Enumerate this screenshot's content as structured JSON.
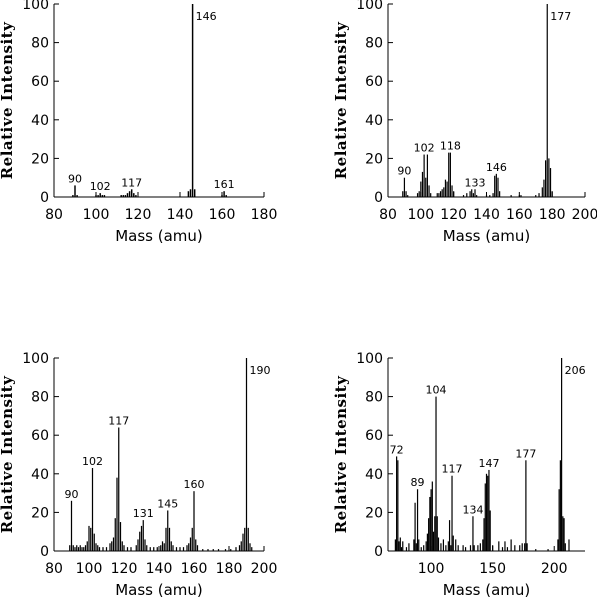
{
  "chart_data": [
    {
      "type": "bar",
      "xlabel": "Mass (amu)",
      "ylabel": "Relative Intensity",
      "xlim": [
        80,
        180
      ],
      "ylim": [
        0,
        100
      ],
      "xticks": [
        80,
        100,
        120,
        140,
        160,
        180
      ],
      "yticks": [
        0,
        20,
        40,
        60,
        80,
        100
      ],
      "peaks": [
        {
          "mass": 89,
          "value": 1
        },
        {
          "mass": 90,
          "value": 6
        },
        {
          "mass": 91,
          "value": 1
        },
        {
          "mass": 100,
          "value": 1
        },
        {
          "mass": 101,
          "value": 1
        },
        {
          "mass": 102,
          "value": 2
        },
        {
          "mass": 103,
          "value": 1
        },
        {
          "mass": 104,
          "value": 1
        },
        {
          "mass": 112,
          "value": 1
        },
        {
          "mass": 113,
          "value": 1
        },
        {
          "mass": 114,
          "value": 1
        },
        {
          "mass": 115,
          "value": 2
        },
        {
          "mass": 116,
          "value": 3
        },
        {
          "mass": 117,
          "value": 4
        },
        {
          "mass": 118,
          "value": 2
        },
        {
          "mass": 119,
          "value": 1
        },
        {
          "mass": 144,
          "value": 3
        },
        {
          "mass": 145,
          "value": 4
        },
        {
          "mass": 146,
          "value": 100
        },
        {
          "mass": 147,
          "value": 4
        },
        {
          "mass": 160,
          "value": 1
        },
        {
          "mass": 161,
          "value": 3
        },
        {
          "mass": 162,
          "value": 1
        }
      ],
      "labels": [
        {
          "mass": 90,
          "text": "90"
        },
        {
          "mass": 102,
          "text": "102"
        },
        {
          "mass": 117,
          "text": "117"
        },
        {
          "mass": 146,
          "text": "146"
        },
        {
          "mass": 161,
          "text": "161"
        }
      ]
    },
    {
      "type": "bar",
      "xlabel": "Mass (amu)",
      "ylabel": "Relative Intensity",
      "xlim": [
        80,
        200
      ],
      "ylim": [
        0,
        100
      ],
      "xticks": [
        80,
        100,
        120,
        140,
        160,
        180,
        200
      ],
      "yticks": [
        0,
        20,
        40,
        60,
        80,
        100
      ],
      "peaks": [
        {
          "mass": 89,
          "value": 3
        },
        {
          "mass": 90,
          "value": 10
        },
        {
          "mass": 91,
          "value": 3
        },
        {
          "mass": 92,
          "value": 1
        },
        {
          "mass": 98,
          "value": 2
        },
        {
          "mass": 99,
          "value": 3
        },
        {
          "mass": 100,
          "value": 8
        },
        {
          "mass": 101,
          "value": 13
        },
        {
          "mass": 102,
          "value": 22
        },
        {
          "mass": 103,
          "value": 10
        },
        {
          "mass": 104,
          "value": 22
        },
        {
          "mass": 105,
          "value": 6
        },
        {
          "mass": 106,
          "value": 2
        },
        {
          "mass": 110,
          "value": 2
        },
        {
          "mass": 111,
          "value": 2
        },
        {
          "mass": 112,
          "value": 3
        },
        {
          "mass": 113,
          "value": 4
        },
        {
          "mass": 114,
          "value": 5
        },
        {
          "mass": 115,
          "value": 9
        },
        {
          "mass": 116,
          "value": 8
        },
        {
          "mass": 117,
          "value": 23
        },
        {
          "mass": 118,
          "value": 23
        },
        {
          "mass": 119,
          "value": 6
        },
        {
          "mass": 120,
          "value": 3
        },
        {
          "mass": 126,
          "value": 1
        },
        {
          "mass": 128,
          "value": 2
        },
        {
          "mass": 130,
          "value": 3
        },
        {
          "mass": 131,
          "value": 4
        },
        {
          "mass": 132,
          "value": 2
        },
        {
          "mass": 133,
          "value": 4
        },
        {
          "mass": 134,
          "value": 1
        },
        {
          "mass": 140,
          "value": 1
        },
        {
          "mass": 142,
          "value": 1
        },
        {
          "mass": 144,
          "value": 2
        },
        {
          "mass": 145,
          "value": 11
        },
        {
          "mass": 146,
          "value": 12
        },
        {
          "mass": 147,
          "value": 10
        },
        {
          "mass": 148,
          "value": 3
        },
        {
          "mass": 155,
          "value": 1
        },
        {
          "mass": 160,
          "value": 1
        },
        {
          "mass": 161,
          "value": 1
        },
        {
          "mass": 170,
          "value": 1
        },
        {
          "mass": 172,
          "value": 2
        },
        {
          "mass": 174,
          "value": 5
        },
        {
          "mass": 175,
          "value": 9
        },
        {
          "mass": 176,
          "value": 19
        },
        {
          "mass": 177,
          "value": 100
        },
        {
          "mass": 178,
          "value": 20
        },
        {
          "mass": 179,
          "value": 15
        },
        {
          "mass": 180,
          "value": 3
        }
      ],
      "labels": [
        {
          "mass": 90,
          "text": "90"
        },
        {
          "mass": 102,
          "text": "102"
        },
        {
          "mass": 118,
          "text": "118"
        },
        {
          "mass": 133,
          "text": "133"
        },
        {
          "mass": 146,
          "text": "146"
        },
        {
          "mass": 177,
          "text": "177"
        }
      ]
    },
    {
      "type": "bar",
      "xlabel": "Mass (amu)",
      "ylabel": "Relative Intensity",
      "xlim": [
        80,
        200
      ],
      "ylim": [
        0,
        100
      ],
      "xticks": [
        80,
        100,
        120,
        140,
        160,
        180,
        200
      ],
      "yticks": [
        0,
        20,
        40,
        60,
        80,
        100
      ],
      "peaks": [
        {
          "mass": 89,
          "value": 3
        },
        {
          "mass": 90,
          "value": 26
        },
        {
          "mass": 91,
          "value": 3
        },
        {
          "mass": 92,
          "value": 2
        },
        {
          "mass": 93,
          "value": 3
        },
        {
          "mass": 94,
          "value": 2
        },
        {
          "mass": 95,
          "value": 3
        },
        {
          "mass": 96,
          "value": 2
        },
        {
          "mass": 97,
          "value": 2
        },
        {
          "mass": 98,
          "value": 3
        },
        {
          "mass": 99,
          "value": 5
        },
        {
          "mass": 100,
          "value": 13
        },
        {
          "mass": 101,
          "value": 12
        },
        {
          "mass": 102,
          "value": 43
        },
        {
          "mass": 103,
          "value": 9
        },
        {
          "mass": 104,
          "value": 4
        },
        {
          "mass": 105,
          "value": 3
        },
        {
          "mass": 106,
          "value": 2
        },
        {
          "mass": 108,
          "value": 2
        },
        {
          "mass": 110,
          "value": 2
        },
        {
          "mass": 112,
          "value": 4
        },
        {
          "mass": 113,
          "value": 5
        },
        {
          "mass": 114,
          "value": 7
        },
        {
          "mass": 115,
          "value": 17
        },
        {
          "mass": 116,
          "value": 38
        },
        {
          "mass": 117,
          "value": 64
        },
        {
          "mass": 118,
          "value": 15
        },
        {
          "mass": 119,
          "value": 5
        },
        {
          "mass": 120,
          "value": 3
        },
        {
          "mass": 122,
          "value": 2
        },
        {
          "mass": 124,
          "value": 2
        },
        {
          "mass": 127,
          "value": 3
        },
        {
          "mass": 128,
          "value": 6
        },
        {
          "mass": 129,
          "value": 10
        },
        {
          "mass": 130,
          "value": 13
        },
        {
          "mass": 131,
          "value": 16
        },
        {
          "mass": 132,
          "value": 6
        },
        {
          "mass": 133,
          "value": 3
        },
        {
          "mass": 135,
          "value": 2
        },
        {
          "mass": 137,
          "value": 2
        },
        {
          "mass": 139,
          "value": 2
        },
        {
          "mass": 141,
          "value": 3
        },
        {
          "mass": 142,
          "value": 5
        },
        {
          "mass": 143,
          "value": 4
        },
        {
          "mass": 144,
          "value": 12
        },
        {
          "mass": 145,
          "value": 21
        },
        {
          "mass": 146,
          "value": 12
        },
        {
          "mass": 147,
          "value": 5
        },
        {
          "mass": 148,
          "value": 3
        },
        {
          "mass": 150,
          "value": 2
        },
        {
          "mass": 152,
          "value": 2
        },
        {
          "mass": 154,
          "value": 2
        },
        {
          "mass": 156,
          "value": 3
        },
        {
          "mass": 157,
          "value": 4
        },
        {
          "mass": 158,
          "value": 7
        },
        {
          "mass": 159,
          "value": 12
        },
        {
          "mass": 160,
          "value": 31
        },
        {
          "mass": 161,
          "value": 6
        },
        {
          "mass": 162,
          "value": 3
        },
        {
          "mass": 165,
          "value": 1
        },
        {
          "mass": 168,
          "value": 1
        },
        {
          "mass": 171,
          "value": 1
        },
        {
          "mass": 174,
          "value": 1
        },
        {
          "mass": 178,
          "value": 1
        },
        {
          "mass": 181,
          "value": 1
        },
        {
          "mass": 184,
          "value": 2
        },
        {
          "mass": 186,
          "value": 3
        },
        {
          "mass": 187,
          "value": 5
        },
        {
          "mass": 188,
          "value": 9
        },
        {
          "mass": 189,
          "value": 12
        },
        {
          "mass": 190,
          "value": 100
        },
        {
          "mass": 191,
          "value": 12
        },
        {
          "mass": 192,
          "value": 4
        },
        {
          "mass": 193,
          "value": 2
        }
      ],
      "labels": [
        {
          "mass": 90,
          "text": "90"
        },
        {
          "mass": 102,
          "text": "102"
        },
        {
          "mass": 117,
          "text": "117"
        },
        {
          "mass": 131,
          "text": "131"
        },
        {
          "mass": 145,
          "text": "145"
        },
        {
          "mass": 160,
          "text": "160"
        },
        {
          "mass": 190,
          "text": "190"
        }
      ]
    },
    {
      "type": "bar",
      "xlabel": "Mass (amu)",
      "ylabel": "Relative Intensity",
      "xlim": [
        65,
        225
      ],
      "ylim": [
        0,
        100
      ],
      "xticks": [
        100,
        150,
        200
      ],
      "yticks": [
        0,
        20,
        40,
        60,
        80,
        100
      ],
      "peaks": [
        {
          "mass": 71,
          "value": 6
        },
        {
          "mass": 72,
          "value": 49
        },
        {
          "mass": 73,
          "value": 47
        },
        {
          "mass": 74,
          "value": 5
        },
        {
          "mass": 75,
          "value": 7
        },
        {
          "mass": 76,
          "value": 2
        },
        {
          "mass": 77,
          "value": 5
        },
        {
          "mass": 80,
          "value": 2
        },
        {
          "mass": 82,
          "value": 4
        },
        {
          "mass": 86,
          "value": 6
        },
        {
          "mass": 87,
          "value": 25
        },
        {
          "mass": 88,
          "value": 4
        },
        {
          "mass": 89,
          "value": 32
        },
        {
          "mass": 90,
          "value": 6
        },
        {
          "mass": 92,
          "value": 2
        },
        {
          "mass": 94,
          "value": 3
        },
        {
          "mass": 96,
          "value": 5
        },
        {
          "mass": 97,
          "value": 9
        },
        {
          "mass": 98,
          "value": 17
        },
        {
          "mass": 99,
          "value": 28
        },
        {
          "mass": 100,
          "value": 32
        },
        {
          "mass": 101,
          "value": 36
        },
        {
          "mass": 102,
          "value": 10
        },
        {
          "mass": 103,
          "value": 18
        },
        {
          "mass": 104,
          "value": 80
        },
        {
          "mass": 105,
          "value": 18
        },
        {
          "mass": 106,
          "value": 7
        },
        {
          "mass": 108,
          "value": 4
        },
        {
          "mass": 110,
          "value": 6
        },
        {
          "mass": 112,
          "value": 3
        },
        {
          "mass": 114,
          "value": 5
        },
        {
          "mass": 115,
          "value": 16
        },
        {
          "mass": 116,
          "value": 3
        },
        {
          "mass": 117,
          "value": 39
        },
        {
          "mass": 118,
          "value": 8
        },
        {
          "mass": 120,
          "value": 6
        },
        {
          "mass": 122,
          "value": 3
        },
        {
          "mass": 126,
          "value": 3
        },
        {
          "mass": 128,
          "value": 2
        },
        {
          "mass": 132,
          "value": 3
        },
        {
          "mass": 134,
          "value": 18
        },
        {
          "mass": 135,
          "value": 3
        },
        {
          "mass": 138,
          "value": 3
        },
        {
          "mass": 140,
          "value": 4
        },
        {
          "mass": 142,
          "value": 6
        },
        {
          "mass": 143,
          "value": 17
        },
        {
          "mass": 144,
          "value": 35
        },
        {
          "mass": 145,
          "value": 40
        },
        {
          "mass": 146,
          "value": 39
        },
        {
          "mass": 147,
          "value": 42
        },
        {
          "mass": 148,
          "value": 21
        },
        {
          "mass": 150,
          "value": 3
        },
        {
          "mass": 155,
          "value": 5
        },
        {
          "mass": 158,
          "value": 2
        },
        {
          "mass": 160,
          "value": 5
        },
        {
          "mass": 162,
          "value": 2
        },
        {
          "mass": 165,
          "value": 6
        },
        {
          "mass": 168,
          "value": 3
        },
        {
          "mass": 172,
          "value": 3
        },
        {
          "mass": 174,
          "value": 4
        },
        {
          "mass": 176,
          "value": 4
        },
        {
          "mass": 177,
          "value": 47
        },
        {
          "mass": 178,
          "value": 4
        },
        {
          "mass": 185,
          "value": 1
        },
        {
          "mass": 195,
          "value": 1
        },
        {
          "mass": 203,
          "value": 6
        },
        {
          "mass": 204,
          "value": 32
        },
        {
          "mass": 205,
          "value": 47
        },
        {
          "mass": 206,
          "value": 100
        },
        {
          "mass": 207,
          "value": 18
        },
        {
          "mass": 208,
          "value": 17
        },
        {
          "mass": 209,
          "value": 4
        },
        {
          "mass": 212,
          "value": 6
        }
      ],
      "labels": [
        {
          "mass": 72,
          "text": "72"
        },
        {
          "mass": 89,
          "text": "89"
        },
        {
          "mass": 104,
          "text": "104"
        },
        {
          "mass": 117,
          "text": "117"
        },
        {
          "mass": 134,
          "text": "134"
        },
        {
          "mass": 147,
          "text": "147"
        },
        {
          "mass": 177,
          "text": "177"
        },
        {
          "mass": 206,
          "text": "206"
        }
      ]
    }
  ]
}
